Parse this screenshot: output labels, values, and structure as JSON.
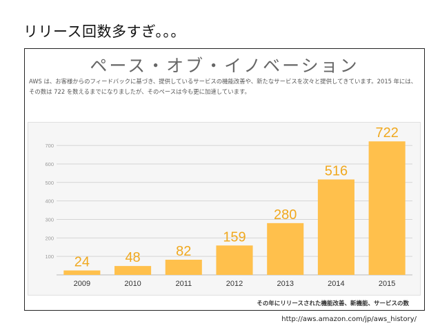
{
  "slide": {
    "title": "リリース回数多すぎ。。。",
    "source": "http://aws.amazon.com/jp/aws_history/"
  },
  "figure": {
    "heading": "ペース・オブ・イノベーション",
    "description": "AWS は、お客様からのフィードバックに基づき、提供しているサービスの機能改善や、新たなサービスを次々と提供してきています。2015 年には、その数は 722 を数えるまでになりましたが、そのペースは今も更に加速しています。",
    "footnote": "その年にリリースされた機能改善、新機能、サービスの数"
  },
  "colors": {
    "bar": "#ffc04c",
    "label": "#f0a81e",
    "grid": "#d4d4d4"
  },
  "chart_data": {
    "type": "bar",
    "categories": [
      "2009",
      "2010",
      "2011",
      "2012",
      "2013",
      "2014",
      "2015"
    ],
    "values": [
      24,
      48,
      82,
      159,
      280,
      516,
      722
    ],
    "data_labels": [
      "24",
      "48",
      "82",
      "159",
      "280",
      "516",
      "722"
    ],
    "yticks": [
      "100",
      "200",
      "300",
      "400",
      "500",
      "600",
      "700"
    ],
    "ylim": [
      0,
      760
    ],
    "grid": true,
    "title": "",
    "xlabel": "",
    "ylabel": ""
  }
}
